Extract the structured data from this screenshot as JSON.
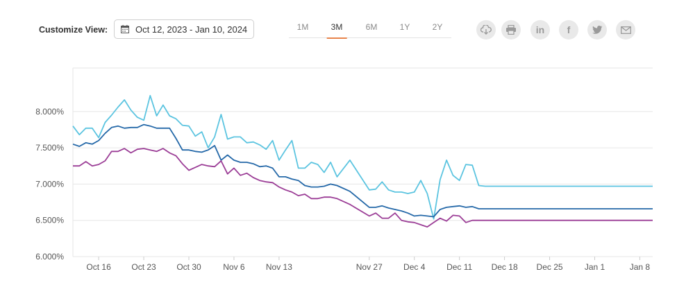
{
  "toolbar": {
    "customize_label": "Customize View:",
    "date_range": "Oct 12, 2023 - Jan 10, 2024",
    "ranges": [
      "1M",
      "3M",
      "6M",
      "1Y",
      "2Y"
    ],
    "active_range": "3M",
    "share_icons": [
      "cloud-download-icon",
      "print-icon",
      "linkedin-icon",
      "facebook-icon",
      "twitter-icon",
      "email-icon"
    ],
    "linkedin_glyph": "in",
    "facebook_glyph": "f"
  },
  "colors": {
    "series_light_blue": "#5bc4e0",
    "series_dark_blue": "#2468a8",
    "series_purple": "#9b3d96",
    "accent_underline": "#e8834a",
    "grid": "#e6e6e6"
  },
  "chart_data": {
    "type": "line",
    "title": "",
    "xlabel": "",
    "ylabel": "",
    "ylim": [
      6.0,
      8.6
    ],
    "y_ticks": [
      6.0,
      6.5,
      7.0,
      7.5,
      8.0
    ],
    "y_tick_labels": [
      "6.000%",
      "6.500%",
      "7.000%",
      "7.500%",
      "8.000%"
    ],
    "x_tick_labels": [
      "Oct 16",
      "Oct 23",
      "Oct 30",
      "Nov 6",
      "Nov 13",
      "Nov 27",
      "Dec 4",
      "Dec 11",
      "Dec 18",
      "Dec 25",
      "Jan 1",
      "Jan 8"
    ],
    "x_tick_dates": [
      "2023-10-16",
      "2023-10-23",
      "2023-10-30",
      "2023-11-06",
      "2023-11-13",
      "2023-11-27",
      "2023-12-04",
      "2023-12-11",
      "2023-12-18",
      "2023-12-25",
      "2024-01-01",
      "2024-01-08"
    ],
    "x_range": [
      "2023-10-12",
      "2024-01-10"
    ],
    "grid": true,
    "legend": "none",
    "dates": [
      "2023-10-12",
      "2023-10-13",
      "2023-10-14",
      "2023-10-15",
      "2023-10-16",
      "2023-10-17",
      "2023-10-18",
      "2023-10-19",
      "2023-10-20",
      "2023-10-21",
      "2023-10-22",
      "2023-10-23",
      "2023-10-24",
      "2023-10-25",
      "2023-10-26",
      "2023-10-27",
      "2023-10-28",
      "2023-10-29",
      "2023-10-30",
      "2023-10-31",
      "2023-11-01",
      "2023-11-02",
      "2023-11-03",
      "2023-11-04",
      "2023-11-05",
      "2023-11-06",
      "2023-11-07",
      "2023-11-08",
      "2023-11-09",
      "2023-11-10",
      "2023-11-11",
      "2023-11-12",
      "2023-11-13",
      "2023-11-14",
      "2023-11-15",
      "2023-11-16",
      "2023-11-17",
      "2023-11-18",
      "2023-11-19",
      "2023-11-20",
      "2023-11-21",
      "2023-11-22",
      "2023-11-24",
      "2023-11-27",
      "2023-11-28",
      "2023-11-29",
      "2023-11-30",
      "2023-12-01",
      "2023-12-02",
      "2023-12-03",
      "2023-12-04",
      "2023-12-05",
      "2023-12-06",
      "2023-12-07",
      "2023-12-08",
      "2023-12-09",
      "2023-12-10",
      "2023-12-11",
      "2023-12-12",
      "2023-12-13",
      "2023-12-14",
      "2023-12-15",
      "2023-12-16",
      "2023-12-17",
      "2023-12-18",
      "2023-12-19",
      "2023-12-20",
      "2023-12-21",
      "2023-12-22",
      "2023-12-23",
      "2023-12-24",
      "2023-12-26",
      "2023-12-27",
      "2023-12-28",
      "2023-12-29",
      "2023-12-30",
      "2023-12-31",
      "2024-01-01",
      "2024-01-02",
      "2024-01-03",
      "2024-01-04",
      "2024-01-05",
      "2024-01-06",
      "2024-01-07",
      "2024-01-08",
      "2024-01-09",
      "2024-01-10"
    ],
    "series": [
      {
        "color": "#5bc4e0",
        "values": [
          7.8,
          7.68,
          7.77,
          7.77,
          7.64,
          7.85,
          7.95,
          8.06,
          8.16,
          8.02,
          7.92,
          7.88,
          8.22,
          7.94,
          8.09,
          7.94,
          7.9,
          7.81,
          7.8,
          7.66,
          7.72,
          7.5,
          7.65,
          7.96,
          7.62,
          7.65,
          7.65,
          7.57,
          7.58,
          7.54,
          7.48,
          7.6,
          7.33,
          7.47,
          7.6,
          7.22,
          7.22,
          7.3,
          7.27,
          7.16,
          7.3,
          7.1,
          7.33,
          6.92,
          6.93,
          7.03,
          6.92,
          6.89,
          6.89,
          6.87,
          6.89,
          7.05,
          6.87,
          6.52,
          7.06,
          7.33,
          7.12,
          7.05,
          7.27,
          7.26,
          6.98,
          6.97,
          6.97,
          6.97,
          6.97,
          6.97,
          6.97,
          6.97,
          6.97,
          6.97,
          6.97,
          6.97,
          6.97,
          6.97,
          6.97,
          6.97,
          6.97,
          6.97,
          6.97,
          6.97,
          6.97,
          6.97,
          6.97,
          6.97,
          6.97,
          6.97,
          6.97
        ]
      },
      {
        "color": "#2468a8",
        "values": [
          7.55,
          7.52,
          7.57,
          7.55,
          7.6,
          7.7,
          7.78,
          7.8,
          7.77,
          7.78,
          7.78,
          7.82,
          7.8,
          7.77,
          7.77,
          7.77,
          7.63,
          7.47,
          7.47,
          7.45,
          7.44,
          7.47,
          7.53,
          7.33,
          7.4,
          7.33,
          7.3,
          7.3,
          7.28,
          7.24,
          7.25,
          7.22,
          7.1,
          7.1,
          7.07,
          7.05,
          6.98,
          6.96,
          6.96,
          6.97,
          7.0,
          6.98,
          6.9,
          6.68,
          6.68,
          6.7,
          6.67,
          6.65,
          6.63,
          6.6,
          6.56,
          6.57,
          6.56,
          6.55,
          6.65,
          6.68,
          6.69,
          6.7,
          6.68,
          6.69,
          6.66,
          6.66,
          6.66,
          6.66,
          6.66,
          6.66,
          6.66,
          6.66,
          6.66,
          6.66,
          6.66,
          6.66,
          6.66,
          6.66,
          6.66,
          6.66,
          6.66,
          6.66,
          6.66,
          6.66,
          6.66,
          6.66,
          6.66,
          6.66,
          6.66,
          6.66,
          6.66
        ]
      },
      {
        "color": "#9b3d96",
        "values": [
          7.25,
          7.25,
          7.31,
          7.25,
          7.27,
          7.32,
          7.45,
          7.45,
          7.49,
          7.43,
          7.48,
          7.49,
          7.47,
          7.45,
          7.49,
          7.43,
          7.39,
          7.28,
          7.19,
          7.23,
          7.27,
          7.25,
          7.24,
          7.32,
          7.14,
          7.22,
          7.12,
          7.15,
          7.09,
          7.05,
          7.03,
          7.02,
          6.96,
          6.92,
          6.89,
          6.84,
          6.86,
          6.8,
          6.8,
          6.82,
          6.82,
          6.8,
          6.72,
          6.56,
          6.6,
          6.53,
          6.53,
          6.6,
          6.5,
          6.48,
          6.47,
          6.44,
          6.41,
          6.47,
          6.53,
          6.49,
          6.57,
          6.56,
          6.47,
          6.5,
          6.5,
          6.5,
          6.5,
          6.5,
          6.5,
          6.5,
          6.5,
          6.5,
          6.5,
          6.5,
          6.5,
          6.5,
          6.5,
          6.5,
          6.5,
          6.5,
          6.5,
          6.5,
          6.5,
          6.5,
          6.5,
          6.5,
          6.5,
          6.5,
          6.5,
          6.5,
          6.5
        ]
      }
    ]
  }
}
